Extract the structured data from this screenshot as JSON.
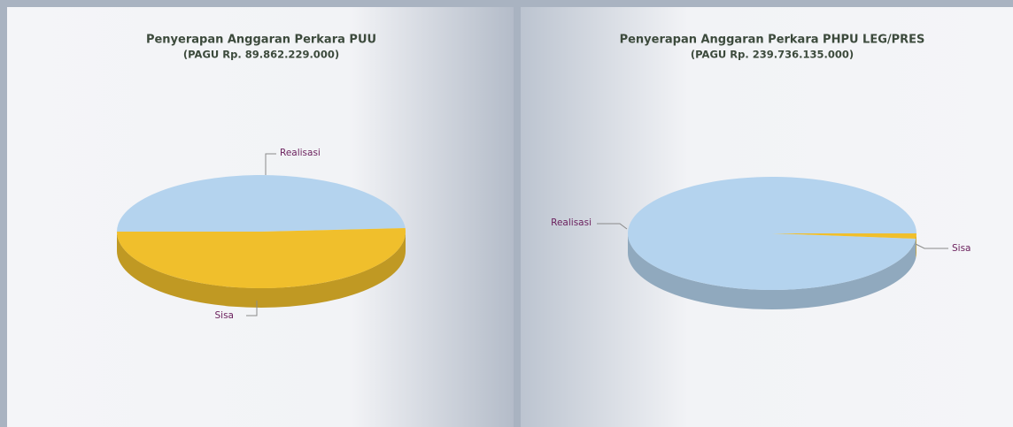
{
  "chart_data": [
    {
      "type": "pie",
      "title": "Penyerapan Anggaran Perkara PUU",
      "subtitle": "(PAGU Rp. 89.862.229.000)",
      "categories": [
        "Realisasi",
        "Sisa"
      ],
      "values": [
        49,
        51
      ],
      "colors": [
        "#b4d3ee",
        "#f0bf2c"
      ]
    },
    {
      "type": "pie",
      "title": "Penyerapan Anggaran Perkara PHPU LEG/PRES",
      "subtitle": "(PAGU Rp. 239.736.135.000)",
      "categories": [
        "Realisasi",
        "Sisa"
      ],
      "values": [
        98.5,
        1.5
      ],
      "colors": [
        "#b4d3ee",
        "#f0bf2c"
      ]
    }
  ]
}
